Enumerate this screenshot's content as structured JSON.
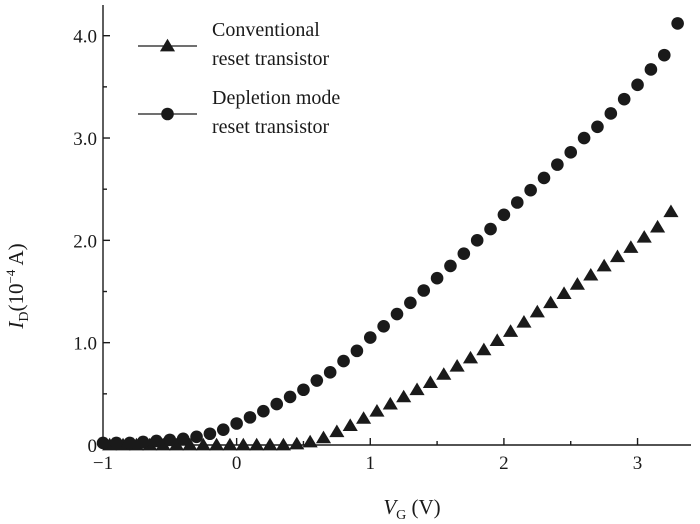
{
  "chart_data": {
    "type": "scatter",
    "xlabel": {
      "main": "V",
      "sub": "G",
      "unit": " (V)"
    },
    "ylabel": {
      "main": "I",
      "sub": "D",
      "unit": "(10",
      "exp": "−4",
      "unit_end": " A)"
    },
    "xlim": [
      -1,
      3.4
    ],
    "ylim": [
      0,
      4.3
    ],
    "xticks": [
      -1,
      0,
      1,
      2,
      3
    ],
    "xtick_labels": [
      "−1",
      "0",
      "1",
      "2",
      "3"
    ],
    "yticks": [
      0,
      1,
      2,
      3,
      4
    ],
    "ytick_labels": [
      "0",
      "1.0",
      "2.0",
      "3.0",
      "4.0"
    ],
    "grid": false,
    "legend_position": "top-left",
    "color": "#1a1a1a",
    "series": [
      {
        "name": [
          "Conventional",
          "reset transistor"
        ],
        "marker": "triangle",
        "x": [
          -0.95,
          -0.85,
          -0.75,
          -0.65,
          -0.55,
          -0.45,
          -0.35,
          -0.25,
          -0.15,
          -0.05,
          0.05,
          0.15,
          0.25,
          0.35,
          0.45,
          0.55,
          0.65,
          0.75,
          0.85,
          0.95,
          1.05,
          1.15,
          1.25,
          1.35,
          1.45,
          1.55,
          1.65,
          1.75,
          1.85,
          1.95,
          2.05,
          2.15,
          2.25,
          2.35,
          2.45,
          2.55,
          2.65,
          2.75,
          2.85,
          2.95,
          3.05,
          3.15,
          3.25
        ],
        "y": [
          0.0,
          0.0,
          0.0,
          0.0,
          0.0,
          0.0,
          0.0,
          0.0,
          0.0,
          0.0,
          0.0,
          0.0,
          0.0,
          0.0,
          0.01,
          0.03,
          0.07,
          0.13,
          0.19,
          0.26,
          0.33,
          0.4,
          0.47,
          0.54,
          0.61,
          0.69,
          0.77,
          0.85,
          0.93,
          1.02,
          1.11,
          1.2,
          1.3,
          1.39,
          1.48,
          1.57,
          1.66,
          1.75,
          1.84,
          1.93,
          2.03,
          2.13,
          2.28
        ]
      },
      {
        "name": [
          "Depletion mode",
          "reset transistor"
        ],
        "marker": "circle",
        "x": [
          -1.0,
          -0.9,
          -0.8,
          -0.7,
          -0.6,
          -0.5,
          -0.4,
          -0.3,
          -0.2,
          -0.1,
          0.0,
          0.1,
          0.2,
          0.3,
          0.4,
          0.5,
          0.6,
          0.7,
          0.8,
          0.9,
          1.0,
          1.1,
          1.2,
          1.3,
          1.4,
          1.5,
          1.6,
          1.7,
          1.8,
          1.9,
          2.0,
          2.1,
          2.2,
          2.3,
          2.4,
          2.5,
          2.6,
          2.7,
          2.8,
          2.9,
          3.0,
          3.1,
          3.2,
          3.3
        ],
        "y": [
          0.02,
          0.02,
          0.02,
          0.03,
          0.04,
          0.05,
          0.06,
          0.08,
          0.11,
          0.15,
          0.21,
          0.27,
          0.33,
          0.4,
          0.47,
          0.54,
          0.63,
          0.71,
          0.82,
          0.92,
          1.05,
          1.16,
          1.28,
          1.39,
          1.51,
          1.63,
          1.75,
          1.87,
          2.0,
          2.11,
          2.25,
          2.37,
          2.49,
          2.61,
          2.74,
          2.86,
          3.0,
          3.11,
          3.24,
          3.38,
          3.52,
          3.67,
          3.81,
          4.12
        ]
      }
    ]
  }
}
